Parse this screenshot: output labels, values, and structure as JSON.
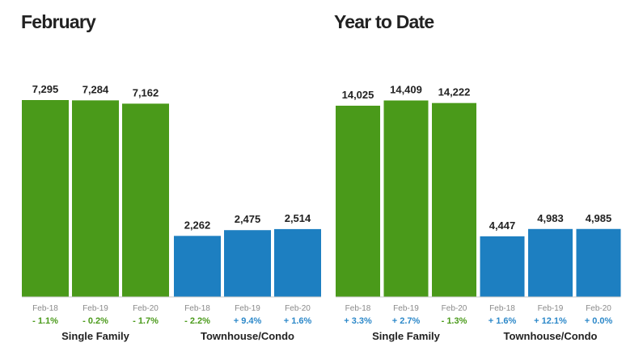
{
  "colors": {
    "single_family": "#4a9a1a",
    "townhouse": "#1d7fc1",
    "positive_change": "#2c88c9",
    "negative_change": "#4a9a1a"
  },
  "chart_data": [
    {
      "type": "bar",
      "title": "February",
      "categories": [
        "Feb-18",
        "Feb-19",
        "Feb-20"
      ],
      "groups": [
        {
          "label": "Single Family",
          "values": [
            7295,
            7284,
            7162
          ],
          "value_labels": [
            "7,295",
            "7,284",
            "7,162"
          ],
          "changes": [
            "- 1.1%",
            "- 0.2%",
            "- 1.7%"
          ]
        },
        {
          "label": "Townhouse/Condo",
          "values": [
            2262,
            2475,
            2514
          ],
          "value_labels": [
            "2,262",
            "2,475",
            "2,514"
          ],
          "changes": [
            "- 2.2%",
            "+ 9.4%",
            "+ 1.6%"
          ]
        }
      ]
    },
    {
      "type": "bar",
      "title": "Year to Date",
      "categories": [
        "Feb-18",
        "Feb-19",
        "Feb-20"
      ],
      "groups": [
        {
          "label": "Single Family",
          "values": [
            14025,
            14409,
            14222
          ],
          "value_labels": [
            "14,025",
            "14,409",
            "14,222"
          ],
          "changes": [
            "+ 3.3%",
            "+ 2.7%",
            "- 1.3%"
          ]
        },
        {
          "label": "Townhouse/Condo",
          "values": [
            4447,
            4983,
            4985
          ],
          "value_labels": [
            "4,447",
            "4,983",
            "4,985"
          ],
          "changes": [
            "+ 1.6%",
            "+ 12.1%",
            "+ 0.0%"
          ]
        }
      ]
    }
  ]
}
